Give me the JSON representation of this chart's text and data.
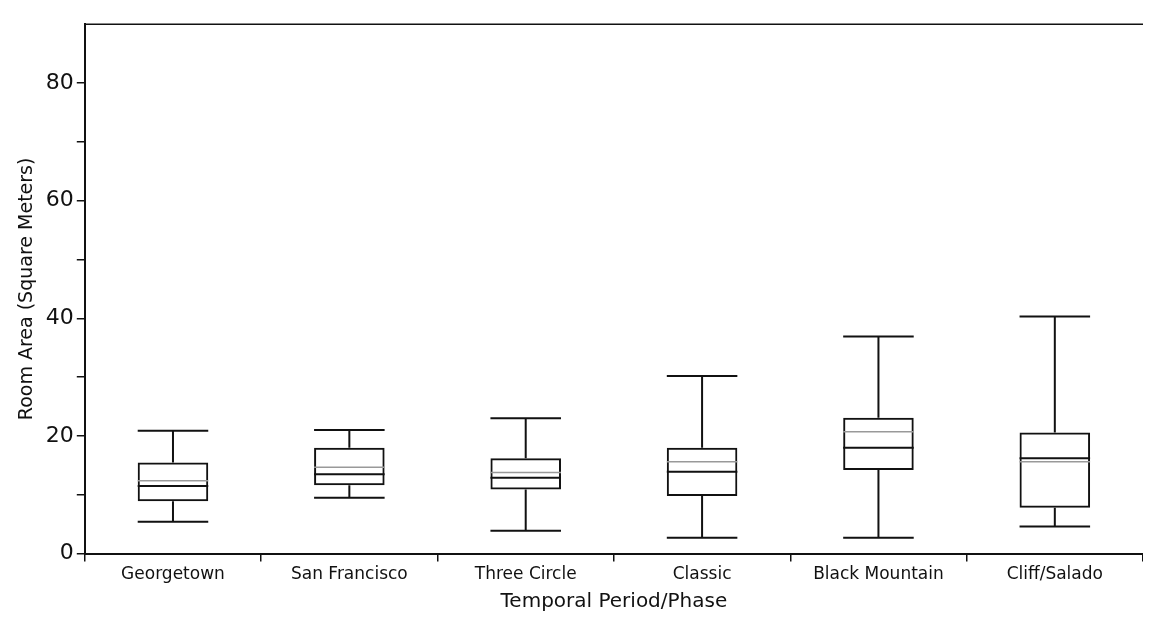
{
  "chart_data": {
    "type": "box",
    "xlabel": "Temporal Period/Phase",
    "ylabel": "Room Area (Square Meters)",
    "categories": [
      "Georgetown",
      "San Francisco",
      "Three Circle",
      "Classic",
      "Black Mountain",
      "Cliff/Salado"
    ],
    "boxes": [
      {
        "low": 5.4,
        "q1": 8.9,
        "median": 11.5,
        "q3": 15.5,
        "high": 20.9,
        "mean": 12.4
      },
      {
        "low": 9.5,
        "q1": 11.6,
        "median": 13.5,
        "q3": 18,
        "high": 21,
        "mean": 14.7
      },
      {
        "low": 3.9,
        "q1": 10.9,
        "median": 12.9,
        "q3": 16.2,
        "high": 23,
        "mean": 13.8
      },
      {
        "low": 2.7,
        "q1": 9.8,
        "median": 13.9,
        "q3": 18,
        "high": 30.2,
        "mean": 15.6
      },
      {
        "low": 2.7,
        "q1": 14.2,
        "median": 18,
        "q3": 23.1,
        "high": 36.9,
        "mean": 20.7
      },
      {
        "low": 4.6,
        "q1": 7.8,
        "median": 16.2,
        "q3": 20.6,
        "high": 40.3,
        "mean": 15.6
      }
    ],
    "color": "#111111",
    "ylim": [
      0,
      90
    ],
    "yticks": [
      0,
      {
        "value": 10,
        "label": null
      },
      20,
      {
        "value": 30,
        "label": null
      },
      40,
      {
        "value": 50,
        "label": null
      },
      60,
      {
        "value": 70,
        "label": null
      },
      80
    ],
    "grid": false,
    "legend": false
  }
}
